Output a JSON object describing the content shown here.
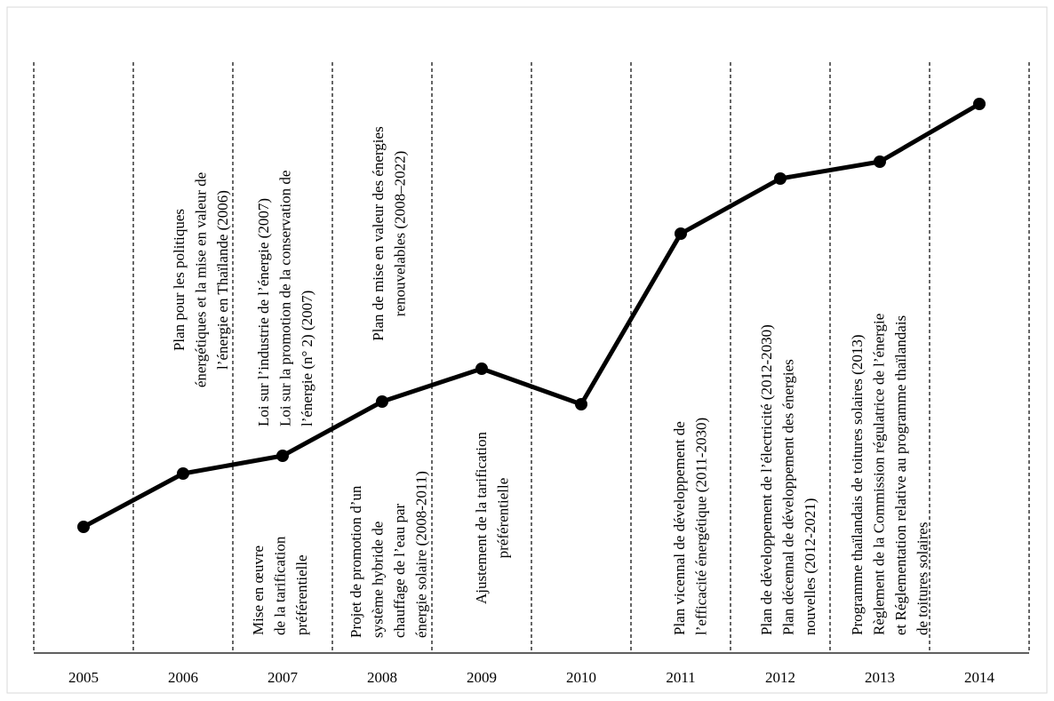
{
  "years": [
    "2005",
    "2006",
    "2007",
    "2008",
    "2009",
    "2010",
    "2011",
    "2012",
    "2013",
    "2014"
  ],
  "annotations": [
    {
      "lines": [
        "Plan pour les politiques",
        "énergétiques et la mise en valeur de",
        "l’énergie en Thaïlande (2006)"
      ]
    },
    {
      "lines": [
        "Mise en œuvre",
        "de la tarification",
        "préférentielle"
      ]
    },
    {
      "lines": [
        "Loi sur l’industrie de l’énergie (2007)",
        "Loi sur la promotion de la conservation de",
        "l’énergie (n° 2) (2007)"
      ]
    },
    {
      "lines": [
        "Projet de promotion d’un",
        "système hybride de",
        "chauffage de l’eau par",
        "énergie solaire (2008-2011)"
      ]
    },
    {
      "lines": [
        "Plan de mise en valeur des énergies",
        "renouvelables (2008–2022)"
      ]
    },
    {
      "lines": [
        "Ajustement de la tarification",
        "préférentielle"
      ]
    },
    {
      "lines": [
        "Plan vicennal de développement de",
        "l’efficacité énergétique (2011-2030)"
      ]
    },
    {
      "lines": [
        "Plan de développement de l’électricité (2012-2030)",
        "Plan décennal de développement des énergies",
        "nouvelles (2012-2021)"
      ]
    },
    {
      "lines": [
        "Programme thaïlandais de toitures solaires (2013)",
        "Règlement de la Commission régulatrice de l’énergie",
        "et Réglementation relative au programme thaïlandais",
        "de toitures solaires"
      ]
    }
  ]
}
